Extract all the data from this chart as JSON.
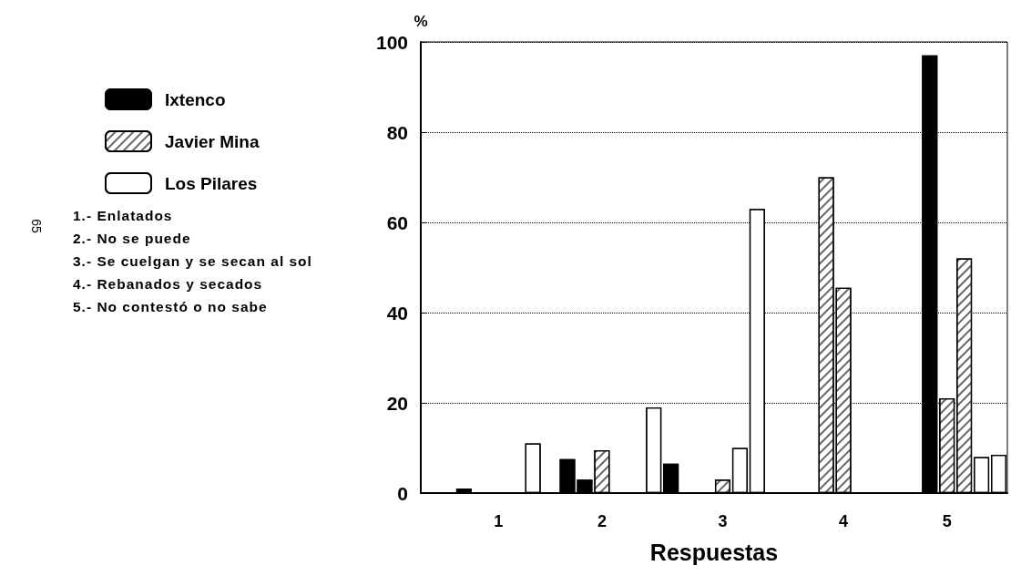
{
  "chart_data": {
    "type": "bar",
    "xlabel": "Respuestas",
    "ylabel": "%",
    "categories": [
      null,
      null,
      null,
      null,
      "1",
      null,
      null,
      null,
      null,
      null,
      "2",
      null,
      null,
      null,
      null,
      null,
      null,
      "3",
      null,
      null,
      null,
      null,
      null,
      null,
      "4",
      null,
      null,
      null,
      null,
      null,
      "5",
      null,
      null,
      null
    ],
    "series": [
      {
        "name": "Ixtenco",
        "color": "#000000",
        "values": [
          null,
          null,
          1,
          null,
          null,
          null,
          null,
          null,
          7.5,
          3,
          null,
          null,
          null,
          null,
          6.5,
          null,
          null,
          null,
          null,
          null,
          null,
          null,
          null,
          null,
          null,
          null,
          null,
          null,
          null,
          97,
          null,
          null,
          null,
          null
        ]
      },
      {
        "name": "Javier Mina",
        "color": "#ffffff",
        "values": [
          null,
          null,
          null,
          null,
          null,
          null,
          null,
          null,
          null,
          null,
          9.5,
          null,
          null,
          null,
          null,
          null,
          null,
          3,
          null,
          null,
          null,
          null,
          null,
          70,
          45.5,
          null,
          null,
          null,
          null,
          null,
          21,
          52,
          null,
          null
        ]
      },
      {
        "name": "Los Pilares",
        "color": "#ffffff",
        "values": [
          null,
          null,
          null,
          null,
          null,
          null,
          11,
          null,
          null,
          null,
          null,
          null,
          null,
          19,
          null,
          null,
          null,
          null,
          10,
          63,
          null,
          null,
          null,
          null,
          null,
          null,
          null,
          null,
          null,
          null,
          null,
          null,
          8,
          8.5
        ]
      }
    ],
    "ylim": [
      0,
      100
    ],
    "yticks": [
      0,
      20,
      40,
      60,
      80,
      100
    ],
    "grid": "y",
    "legend": "top left",
    "annotations": [
      "1.- Enlatados",
      "2.- No se puede",
      "3.- Se cuelgan y se secan al sol",
      "4.- Rebanados y secados",
      "5.- No contestó o no sabe",
      "65"
    ]
  }
}
